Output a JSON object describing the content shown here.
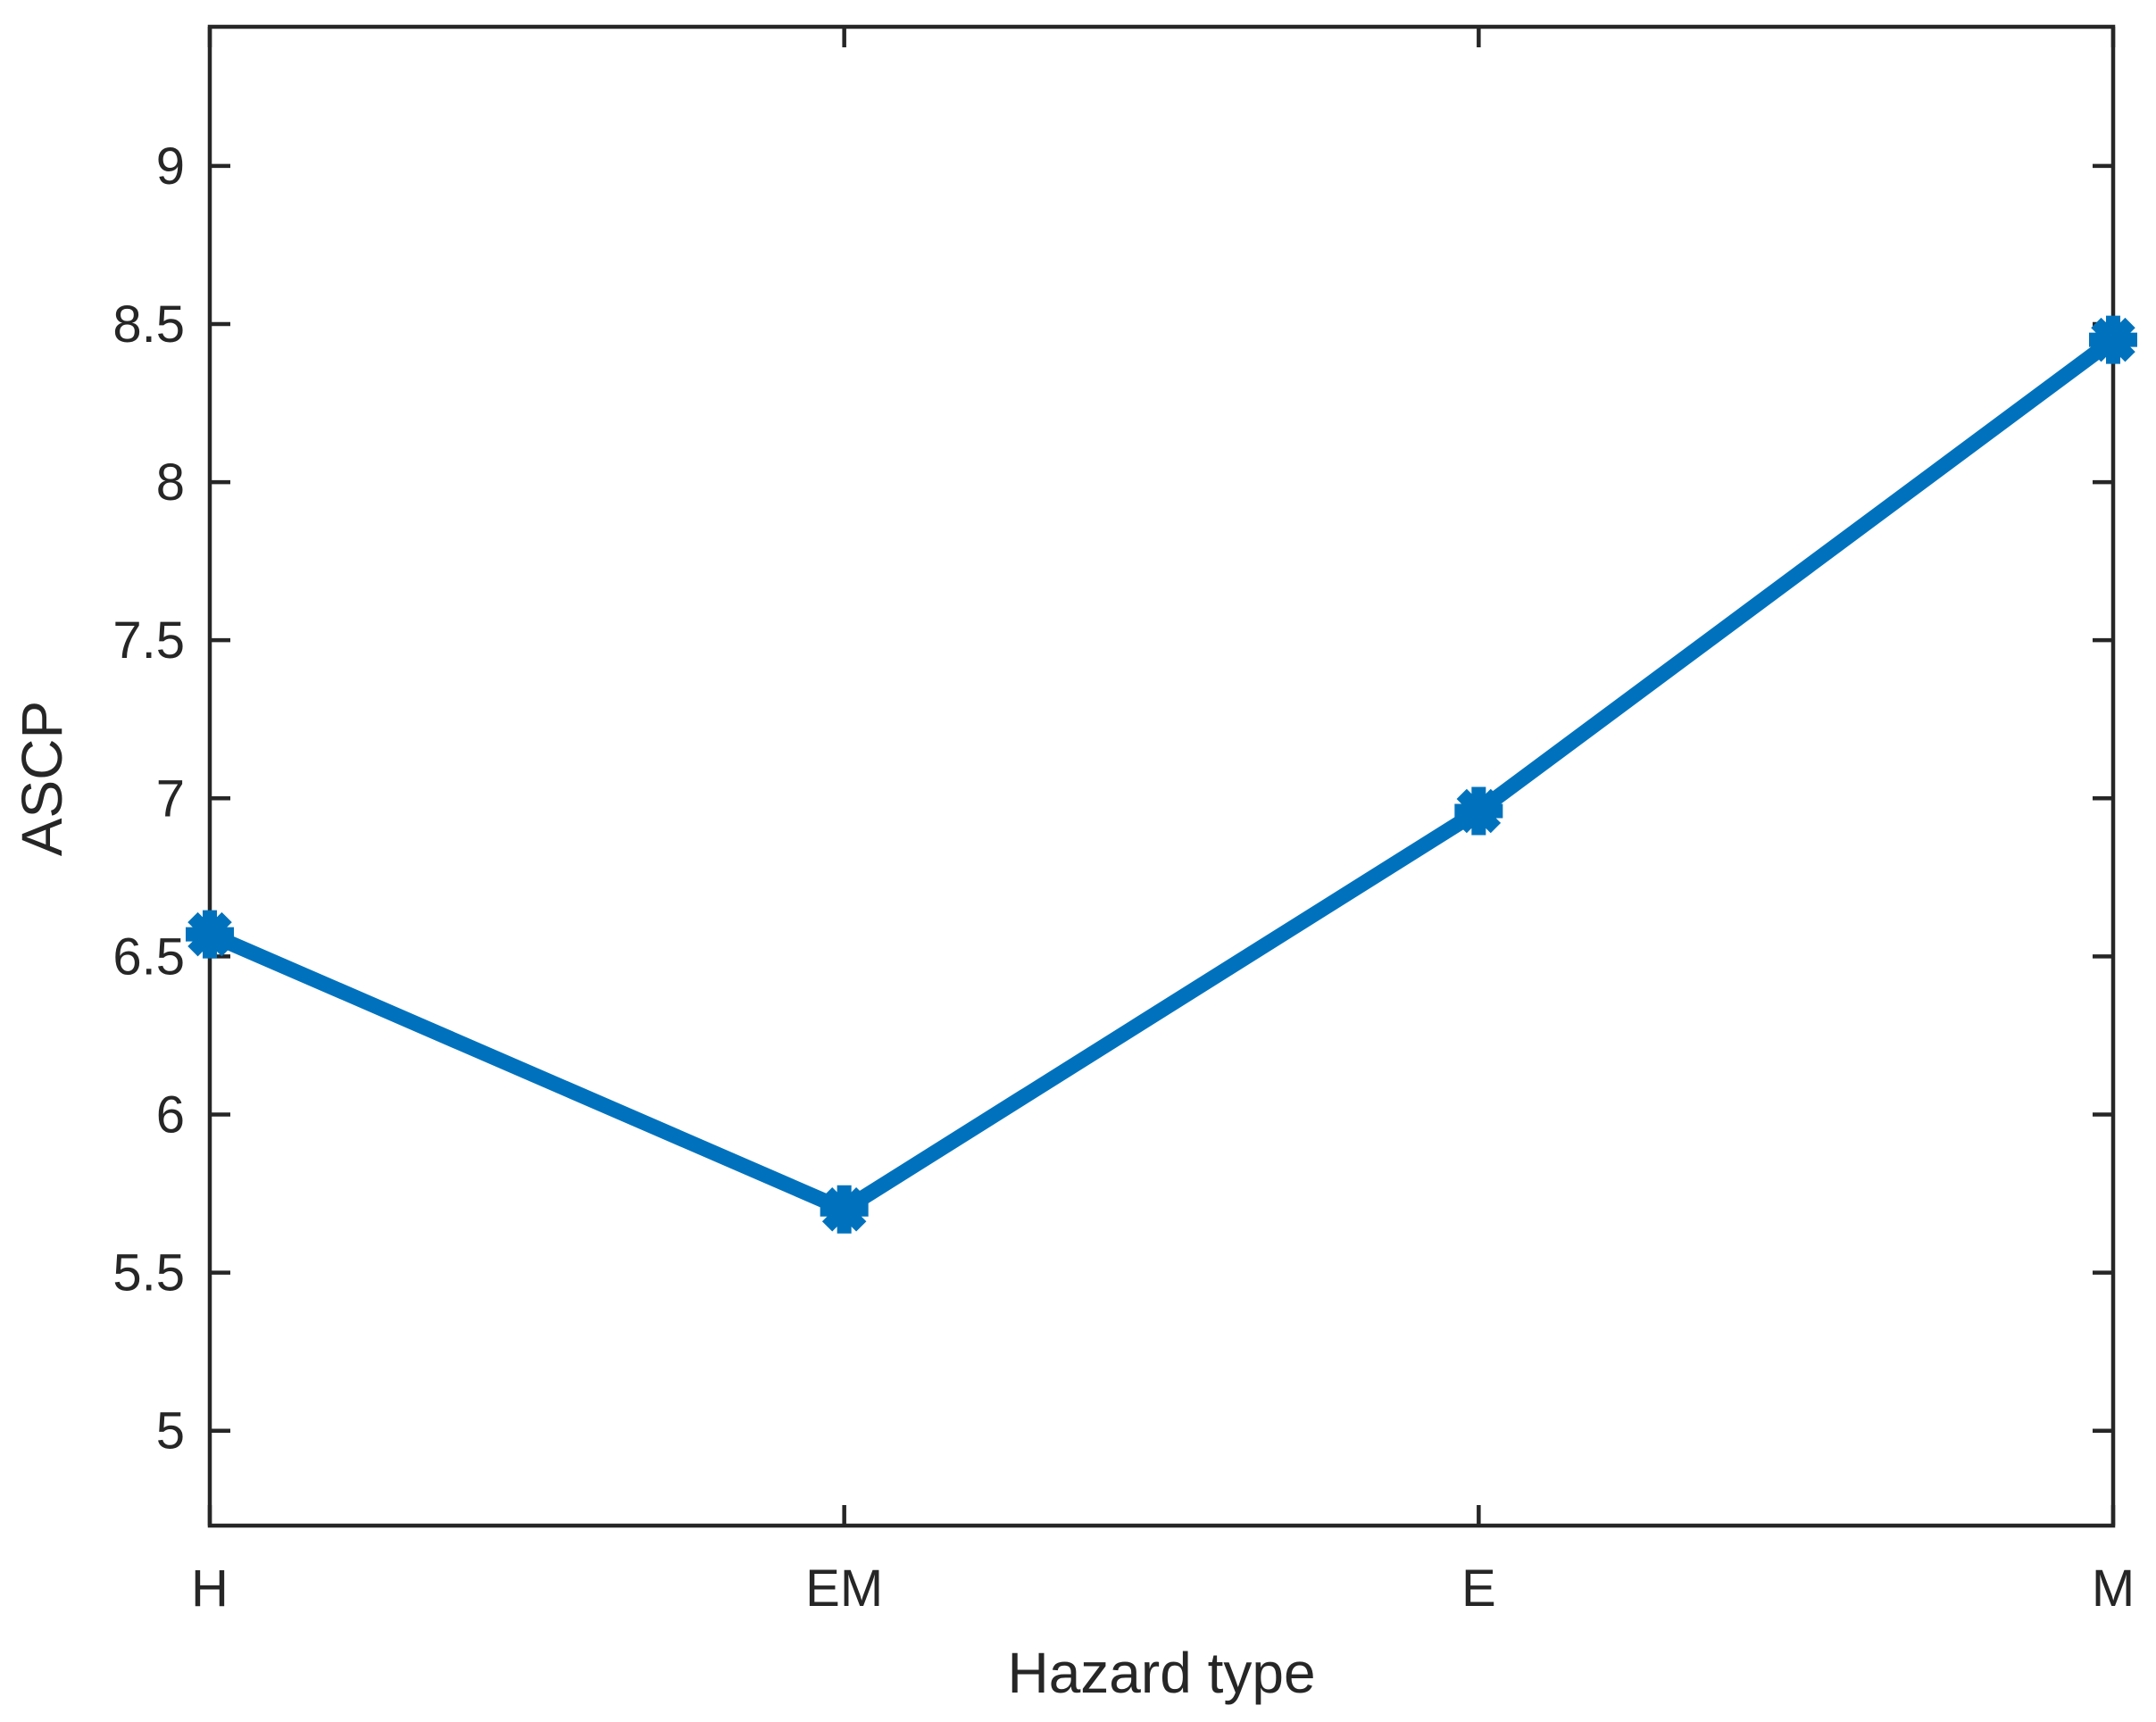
{
  "chart_data": {
    "type": "line",
    "title": "",
    "xlabel": "Hazard type",
    "ylabel": "ASCP",
    "categories": [
      "H",
      "EM",
      "E",
      "M"
    ],
    "series": [
      {
        "name": "ASCP",
        "values": [
          6.57,
          5.7,
          6.96,
          8.45
        ]
      }
    ],
    "ylim": [
      4.7,
      9.44
    ],
    "yticks": [
      5,
      5.5,
      6,
      6.5,
      7,
      7.5,
      8,
      8.5,
      9
    ],
    "ytick_labels": [
      "5",
      "5.5",
      "6",
      "6.5",
      "7",
      "7.5",
      "8",
      "8.5",
      "9"
    ],
    "grid": false,
    "legend": "none",
    "box": true,
    "tick_direction": "in-mirrored",
    "line_color": "#0072BD",
    "marker": "asterisk",
    "axis_color": "#262626",
    "label_color": "#262626",
    "background": "#ffffff"
  }
}
